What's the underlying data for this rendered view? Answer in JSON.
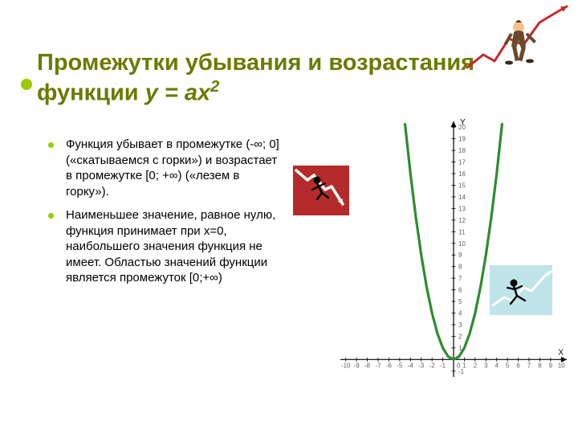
{
  "colors": {
    "accent": "#99cc00",
    "title": "#6b7a00",
    "bullet_dot": "#99cc00",
    "parabola": "#2e8b2e",
    "axis": "#000000",
    "grid": "#e0e0e0",
    "tick_label": "#606060",
    "red_clip_bg": "#b52b2b",
    "red_clip_line": "#ffffff",
    "blue_clip_bg": "#bfe4ea",
    "blue_clip_line": "#ffffff",
    "corner_chart": "#c62828",
    "corner_suit": "#6b4a2a",
    "corner_skin": "#f4c08b"
  },
  "title": {
    "main": "Промежутки убывания и возрастания функции ",
    "eq_prefix": "у = ах",
    "eq_sup": "2",
    "fontsize": 29
  },
  "bullets": {
    "fontsize": 15,
    "items": [
      "Функция убывает в промежутке (-∞; 0] («скатываемся с горки») и возрастает в промежутке [0; +∞) («лезем в горку»).",
      "Наименьшее значение, равное нулю, функция принимает при х=0, наибольшего значения функция не имеет. Областью значений функции является промежуток [0;+∞)"
    ]
  },
  "chart": {
    "type": "line",
    "xlim": [
      -10.5,
      10.5
    ],
    "ylim": [
      -1.5,
      20.5
    ],
    "xtick_step": 1,
    "ytick_step": 1,
    "x_label": "X",
    "y_label": "Y",
    "tick_fontsize": 8,
    "background_color": "#ffffff",
    "axis_width": 1.2,
    "parabola_points": [
      [
        -4.5,
        20.25
      ],
      [
        -4,
        16
      ],
      [
        -3.5,
        12.25
      ],
      [
        -3,
        9
      ],
      [
        -2.5,
        6.25
      ],
      [
        -2,
        4
      ],
      [
        -1.5,
        2.25
      ],
      [
        -1,
        1
      ],
      [
        -0.5,
        0.25
      ],
      [
        0,
        0
      ],
      [
        0.5,
        0.25
      ],
      [
        1,
        1
      ],
      [
        1.5,
        2.25
      ],
      [
        2,
        4
      ],
      [
        2.5,
        6.25
      ],
      [
        3,
        9
      ],
      [
        3.5,
        12.25
      ],
      [
        4,
        16
      ],
      [
        4.5,
        20.25
      ]
    ],
    "parabola_width": 3.2
  },
  "corner_art": {
    "chart_points": [
      [
        2,
        78
      ],
      [
        22,
        62
      ],
      [
        36,
        70
      ],
      [
        54,
        42
      ],
      [
        72,
        50
      ],
      [
        92,
        22
      ],
      [
        112,
        10
      ],
      [
        126,
        2
      ]
    ]
  },
  "red_clip": {
    "points": [
      [
        4,
        6
      ],
      [
        18,
        18
      ],
      [
        26,
        12
      ],
      [
        40,
        30
      ],
      [
        48,
        26
      ],
      [
        62,
        48
      ]
    ]
  },
  "blue_clip": {
    "points": [
      [
        4,
        50
      ],
      [
        18,
        40
      ],
      [
        28,
        44
      ],
      [
        42,
        28
      ],
      [
        52,
        32
      ],
      [
        68,
        14
      ],
      [
        76,
        8
      ]
    ]
  }
}
